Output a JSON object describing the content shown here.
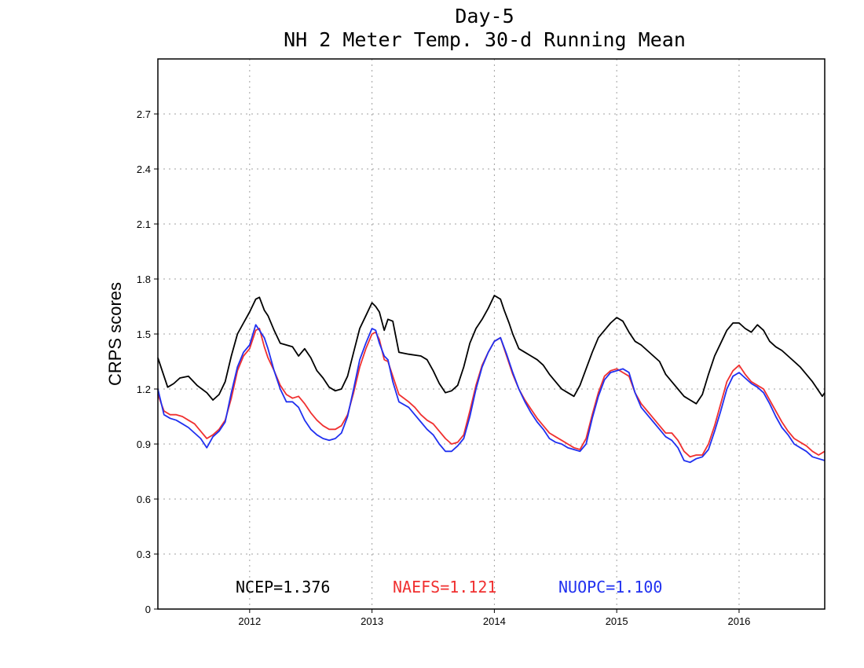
{
  "chart_data": {
    "type": "line",
    "title_line1": "Day-5",
    "title_line2": "NH 2 Meter Temp. 30-d Running Mean",
    "xlabel": "",
    "ylabel": "CRPS scores",
    "xlim": [
      2011.25,
      2016.7
    ],
    "ylim": [
      0,
      3.0
    ],
    "yticks": [
      0,
      0.3,
      0.6,
      0.9,
      1.2,
      1.5,
      1.8,
      2.1,
      2.4,
      2.7
    ],
    "ytick_labels": [
      "0",
      "0.3",
      "0.6",
      "0.9",
      "1.2",
      "1.5",
      "1.8",
      "2.1",
      "2.4",
      "2.7"
    ],
    "xticks": [
      2012,
      2013,
      2014,
      2015,
      2016
    ],
    "xtick_labels": [
      "2012",
      "2013",
      "2014",
      "2015",
      "2016"
    ],
    "grid": true,
    "legend": [
      {
        "label": "NCEP=1.376",
        "color": "#000000"
      },
      {
        "label": "NAEFS=1.121",
        "color": "#f03030"
      },
      {
        "label": "NUOPC=1.100",
        "color": "#2030f0"
      }
    ],
    "series": [
      {
        "name": "NCEP",
        "color": "#000000",
        "x": [
          2011.25,
          2011.3,
          2011.33,
          2011.38,
          2011.43,
          2011.5,
          2011.57,
          2011.65,
          2011.7,
          2011.75,
          2011.8,
          2011.85,
          2011.9,
          2011.95,
          2012.0,
          2012.05,
          2012.08,
          2012.12,
          2012.15,
          2012.2,
          2012.25,
          2012.3,
          2012.35,
          2012.4,
          2012.45,
          2012.5,
          2012.55,
          2012.6,
          2012.65,
          2012.7,
          2012.75,
          2012.8,
          2012.85,
          2012.9,
          2012.95,
          2013.0,
          2013.03,
          2013.06,
          2013.1,
          2013.13,
          2013.17,
          2013.22,
          2013.3,
          2013.4,
          2013.45,
          2013.5,
          2013.55,
          2013.6,
          2013.65,
          2013.7,
          2013.75,
          2013.8,
          2013.85,
          2013.9,
          2013.95,
          2014.0,
          2014.05,
          2014.08,
          2014.12,
          2014.15,
          2014.2,
          2014.25,
          2014.3,
          2014.35,
          2014.4,
          2014.45,
          2014.5,
          2014.55,
          2014.6,
          2014.65,
          2014.7,
          2014.75,
          2014.8,
          2014.85,
          2014.9,
          2014.95,
          2015.0,
          2015.05,
          2015.1,
          2015.15,
          2015.2,
          2015.25,
          2015.3,
          2015.35,
          2015.4,
          2015.45,
          2015.5,
          2015.55,
          2015.6,
          2015.65,
          2015.7,
          2015.75,
          2015.8,
          2015.85,
          2015.9,
          2015.95,
          2016.0,
          2016.05,
          2016.1,
          2016.15,
          2016.2,
          2016.25,
          2016.3,
          2016.35,
          2016.4,
          2016.45,
          2016.5,
          2016.55,
          2016.6,
          2016.65,
          2016.68,
          2016.7
        ],
        "y": [
          1.37,
          1.27,
          1.21,
          1.23,
          1.26,
          1.27,
          1.22,
          1.18,
          1.14,
          1.17,
          1.24,
          1.38,
          1.5,
          1.56,
          1.62,
          1.69,
          1.7,
          1.63,
          1.6,
          1.52,
          1.45,
          1.44,
          1.43,
          1.38,
          1.42,
          1.37,
          1.3,
          1.26,
          1.21,
          1.19,
          1.2,
          1.27,
          1.4,
          1.53,
          1.6,
          1.67,
          1.65,
          1.62,
          1.52,
          1.58,
          1.57,
          1.4,
          1.39,
          1.38,
          1.36,
          1.3,
          1.23,
          1.18,
          1.19,
          1.22,
          1.32,
          1.45,
          1.53,
          1.58,
          1.64,
          1.71,
          1.69,
          1.63,
          1.56,
          1.5,
          1.42,
          1.4,
          1.38,
          1.36,
          1.33,
          1.28,
          1.24,
          1.2,
          1.18,
          1.16,
          1.22,
          1.31,
          1.4,
          1.48,
          1.52,
          1.56,
          1.59,
          1.57,
          1.51,
          1.46,
          1.44,
          1.41,
          1.38,
          1.35,
          1.28,
          1.24,
          1.2,
          1.16,
          1.14,
          1.12,
          1.17,
          1.28,
          1.38,
          1.45,
          1.52,
          1.56,
          1.56,
          1.53,
          1.51,
          1.55,
          1.52,
          1.46,
          1.43,
          1.41,
          1.38,
          1.35,
          1.32,
          1.28,
          1.24,
          1.19,
          1.16,
          1.18
        ]
      },
      {
        "name": "NAEFS",
        "color": "#f03030",
        "x": [
          2011.25,
          2011.3,
          2011.35,
          2011.4,
          2011.45,
          2011.5,
          2011.55,
          2011.6,
          2011.65,
          2011.7,
          2011.75,
          2011.8,
          2011.85,
          2011.9,
          2011.95,
          2012.0,
          2012.05,
          2012.08,
          2012.12,
          2012.15,
          2012.2,
          2012.25,
          2012.3,
          2012.35,
          2012.4,
          2012.45,
          2012.5,
          2012.55,
          2012.6,
          2012.65,
          2012.7,
          2012.75,
          2012.8,
          2012.85,
          2012.9,
          2012.95,
          2013.0,
          2013.03,
          2013.06,
          2013.1,
          2013.13,
          2013.17,
          2013.22,
          2013.3,
          2013.35,
          2013.4,
          2013.45,
          2013.5,
          2013.55,
          2013.6,
          2013.65,
          2013.7,
          2013.75,
          2013.8,
          2013.85,
          2013.9,
          2013.95,
          2014.0,
          2014.05,
          2014.1,
          2014.15,
          2014.2,
          2014.25,
          2014.3,
          2014.35,
          2014.4,
          2014.45,
          2014.5,
          2014.55,
          2014.6,
          2014.65,
          2014.7,
          2014.75,
          2014.8,
          2014.85,
          2014.9,
          2014.95,
          2015.0,
          2015.05,
          2015.1,
          2015.15,
          2015.2,
          2015.25,
          2015.3,
          2015.35,
          2015.4,
          2015.45,
          2015.5,
          2015.55,
          2015.6,
          2015.65,
          2015.7,
          2015.75,
          2015.8,
          2015.85,
          2015.9,
          2015.95,
          2016.0,
          2016.05,
          2016.1,
          2016.15,
          2016.2,
          2016.25,
          2016.3,
          2016.35,
          2016.4,
          2016.45,
          2016.5,
          2016.55,
          2016.6,
          2016.65,
          2016.7
        ],
        "y": [
          1.17,
          1.08,
          1.06,
          1.06,
          1.05,
          1.03,
          1.01,
          0.97,
          0.93,
          0.95,
          0.98,
          1.03,
          1.15,
          1.3,
          1.38,
          1.42,
          1.52,
          1.53,
          1.43,
          1.37,
          1.3,
          1.22,
          1.17,
          1.15,
          1.16,
          1.12,
          1.07,
          1.03,
          1.0,
          0.98,
          0.98,
          1.0,
          1.06,
          1.18,
          1.32,
          1.42,
          1.5,
          1.51,
          1.47,
          1.36,
          1.35,
          1.27,
          1.17,
          1.13,
          1.1,
          1.06,
          1.03,
          1.01,
          0.97,
          0.93,
          0.9,
          0.91,
          0.95,
          1.08,
          1.22,
          1.33,
          1.4,
          1.46,
          1.48,
          1.38,
          1.28,
          1.2,
          1.14,
          1.09,
          1.04,
          1.0,
          0.96,
          0.94,
          0.92,
          0.9,
          0.88,
          0.87,
          0.93,
          1.06,
          1.18,
          1.27,
          1.3,
          1.31,
          1.29,
          1.27,
          1.18,
          1.12,
          1.08,
          1.04,
          1.0,
          0.96,
          0.96,
          0.92,
          0.86,
          0.83,
          0.84,
          0.84,
          0.9,
          1.0,
          1.12,
          1.24,
          1.3,
          1.33,
          1.28,
          1.24,
          1.22,
          1.2,
          1.14,
          1.08,
          1.02,
          0.97,
          0.93,
          0.91,
          0.89,
          0.86,
          0.84,
          0.86
        ]
      },
      {
        "name": "NUOPC",
        "color": "#2030f0",
        "x": [
          2011.25,
          2011.3,
          2011.35,
          2011.4,
          2011.45,
          2011.5,
          2011.55,
          2011.6,
          2011.65,
          2011.7,
          2011.75,
          2011.8,
          2011.85,
          2011.9,
          2011.95,
          2012.0,
          2012.05,
          2012.08,
          2012.12,
          2012.15,
          2012.2,
          2012.25,
          2012.3,
          2012.35,
          2012.4,
          2012.45,
          2012.5,
          2012.55,
          2012.6,
          2012.65,
          2012.7,
          2012.75,
          2012.8,
          2012.85,
          2012.9,
          2012.95,
          2013.0,
          2013.03,
          2013.06,
          2013.1,
          2013.13,
          2013.17,
          2013.22,
          2013.3,
          2013.35,
          2013.4,
          2013.45,
          2013.5,
          2013.55,
          2013.6,
          2013.65,
          2013.7,
          2013.75,
          2013.8,
          2013.85,
          2013.9,
          2013.95,
          2014.0,
          2014.05,
          2014.1,
          2014.15,
          2014.2,
          2014.25,
          2014.3,
          2014.35,
          2014.4,
          2014.45,
          2014.5,
          2014.55,
          2014.6,
          2014.65,
          2014.7,
          2014.75,
          2014.8,
          2014.85,
          2014.9,
          2014.95,
          2015.0,
          2015.05,
          2015.1,
          2015.15,
          2015.2,
          2015.25,
          2015.3,
          2015.35,
          2015.4,
          2015.45,
          2015.5,
          2015.55,
          2015.6,
          2015.65,
          2015.7,
          2015.75,
          2015.8,
          2015.85,
          2015.9,
          2015.95,
          2016.0,
          2016.05,
          2016.1,
          2016.15,
          2016.2,
          2016.25,
          2016.3,
          2016.35,
          2016.4,
          2016.45,
          2016.5,
          2016.55,
          2016.6,
          2016.65,
          2016.7
        ],
        "y": [
          1.2,
          1.06,
          1.04,
          1.03,
          1.01,
          0.99,
          0.96,
          0.93,
          0.88,
          0.94,
          0.97,
          1.02,
          1.18,
          1.32,
          1.4,
          1.44,
          1.55,
          1.52,
          1.48,
          1.42,
          1.3,
          1.2,
          1.13,
          1.13,
          1.1,
          1.03,
          0.98,
          0.95,
          0.93,
          0.92,
          0.93,
          0.96,
          1.05,
          1.2,
          1.36,
          1.45,
          1.53,
          1.52,
          1.45,
          1.38,
          1.36,
          1.24,
          1.13,
          1.1,
          1.06,
          1.02,
          0.98,
          0.95,
          0.9,
          0.86,
          0.86,
          0.89,
          0.93,
          1.05,
          1.2,
          1.32,
          1.4,
          1.46,
          1.48,
          1.39,
          1.29,
          1.2,
          1.13,
          1.07,
          1.02,
          0.98,
          0.93,
          0.91,
          0.9,
          0.88,
          0.87,
          0.86,
          0.9,
          1.04,
          1.16,
          1.25,
          1.29,
          1.3,
          1.31,
          1.29,
          1.18,
          1.1,
          1.06,
          1.02,
          0.98,
          0.94,
          0.92,
          0.88,
          0.81,
          0.8,
          0.82,
          0.83,
          0.87,
          0.97,
          1.08,
          1.2,
          1.27,
          1.29,
          1.26,
          1.23,
          1.21,
          1.18,
          1.12,
          1.05,
          0.99,
          0.95,
          0.9,
          0.88,
          0.86,
          0.83,
          0.82,
          0.81
        ]
      }
    ]
  }
}
